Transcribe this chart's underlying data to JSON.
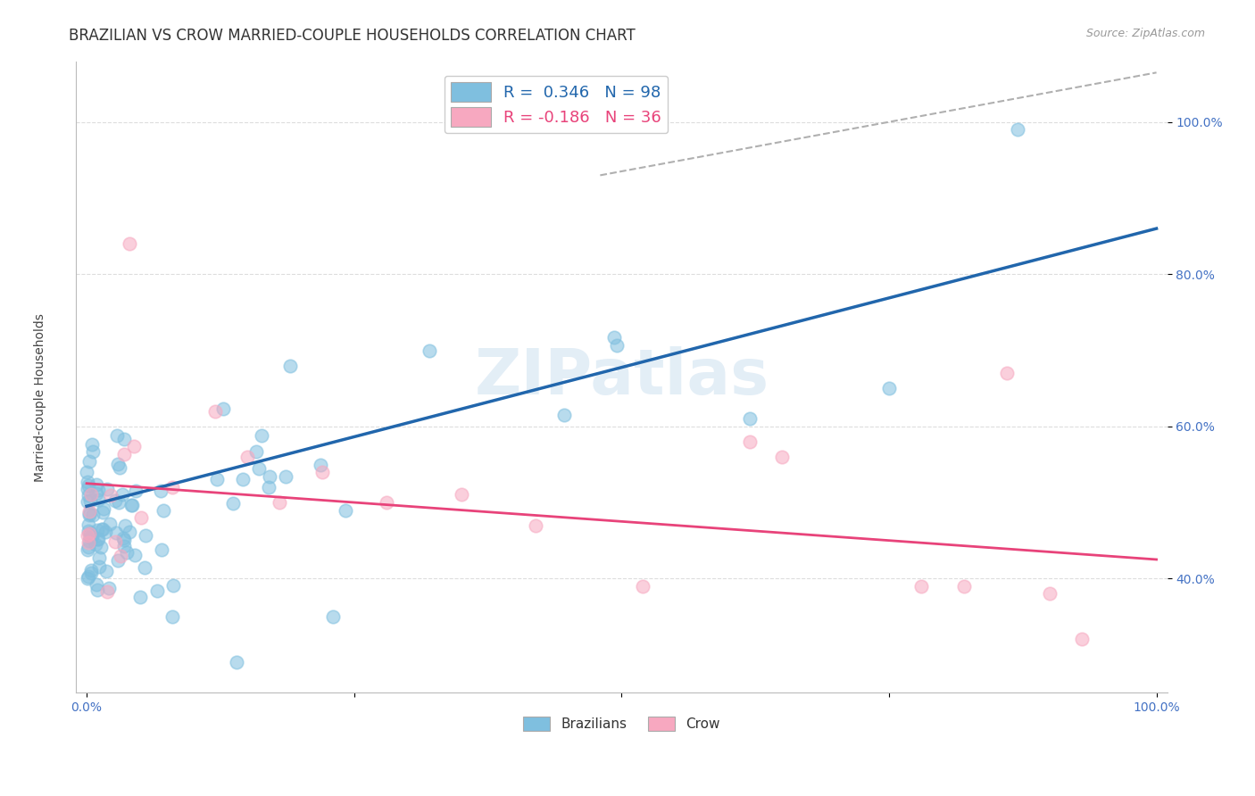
{
  "title": "BRAZILIAN VS CROW MARRIED-COUPLE HOUSEHOLDS CORRELATION CHART",
  "source": "Source: ZipAtlas.com",
  "ylabel": "Married-couple Households",
  "xlim": [
    0.0,
    1.0
  ],
  "ylim": [
    0.25,
    1.08
  ],
  "xtick_positions": [
    0.0,
    0.25,
    0.5,
    0.75,
    1.0
  ],
  "xtick_labels": [
    "0.0%",
    "",
    "",
    "",
    "100.0%"
  ],
  "ytick_positions": [
    0.4,
    0.6,
    0.8,
    1.0
  ],
  "ytick_labels": [
    "40.0%",
    "60.0%",
    "80.0%",
    "100.0%"
  ],
  "brazilian_R": 0.346,
  "brazilian_N": 98,
  "crow_R": -0.186,
  "crow_N": 36,
  "blue_scatter_color": "#7fbfdf",
  "pink_scatter_color": "#f7a8c0",
  "blue_line_color": "#2166ac",
  "pink_line_color": "#e8437a",
  "gray_dash_color": "#b0b0b0",
  "legend_labels": [
    "Brazilians",
    "Crow"
  ],
  "blue_trend_start": 0.495,
  "blue_trend_end": 0.86,
  "pink_trend_start": 0.525,
  "pink_trend_end": 0.425,
  "gray_line_x0": 0.48,
  "gray_line_y0": 0.93,
  "gray_line_x1": 1.0,
  "gray_line_y1": 1.065,
  "watermark_text": "ZIPatlas",
  "title_fontsize": 12,
  "tick_fontsize": 10,
  "tick_color": "#4472c4",
  "legend_fontsize": 13
}
